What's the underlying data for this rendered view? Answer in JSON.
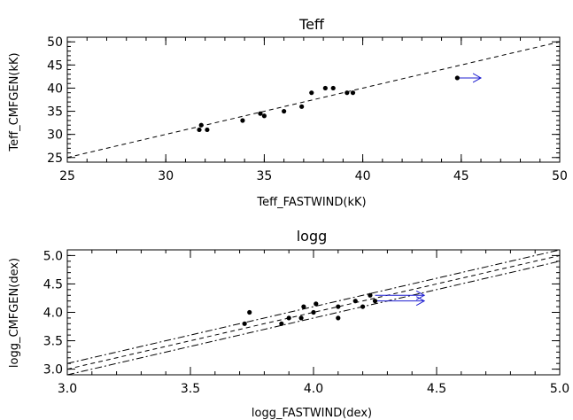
{
  "chart_data": [
    {
      "type": "scatter",
      "title": "Teff",
      "xlabel": "Teff_FASTWIND(kK)",
      "ylabel": "Teff_CMFGEN(kK)",
      "xlim": [
        25,
        50
      ],
      "ylim": [
        24,
        51
      ],
      "xticks": [
        25,
        30,
        35,
        40,
        45,
        50
      ],
      "yticks": [
        25,
        30,
        35,
        40,
        45,
        50
      ],
      "xtick_labels": [
        "25",
        "30",
        "35",
        "40",
        "45",
        "50"
      ],
      "ytick_labels": [
        "25",
        "30",
        "35",
        "40",
        "45",
        "50"
      ],
      "grid": false,
      "points": [
        {
          "x": 31.7,
          "y": 31.0
        },
        {
          "x": 31.8,
          "y": 32.0
        },
        {
          "x": 32.1,
          "y": 31.0
        },
        {
          "x": 33.9,
          "y": 33.0
        },
        {
          "x": 34.8,
          "y": 34.5
        },
        {
          "x": 35.0,
          "y": 34.0
        },
        {
          "x": 36.0,
          "y": 35.0
        },
        {
          "x": 36.9,
          "y": 36.0
        },
        {
          "x": 37.4,
          "y": 39.0
        },
        {
          "x": 38.1,
          "y": 40.0
        },
        {
          "x": 38.5,
          "y": 40.0
        },
        {
          "x": 39.2,
          "y": 39.0
        },
        {
          "x": 39.5,
          "y": 39.0
        },
        {
          "x": 44.8,
          "y": 42.2
        }
      ],
      "arrows": [
        {
          "x_from": 44.8,
          "x_to": 46.0,
          "y": 42.2,
          "color": "#1f1fd0"
        }
      ],
      "reference_lines": [
        {
          "style": "dashed",
          "slope": 1,
          "offset": 0
        }
      ]
    },
    {
      "type": "scatter",
      "title": "logg",
      "xlabel": "logg_FASTWIND(dex)",
      "ylabel": "logg_CMFGEN(dex)",
      "xlim": [
        3.0,
        5.0
      ],
      "ylim": [
        2.9,
        5.1
      ],
      "xticks": [
        3.0,
        3.5,
        4.0,
        4.5,
        5.0
      ],
      "yticks": [
        3.0,
        3.5,
        4.0,
        4.5,
        5.0
      ],
      "xtick_labels": [
        "3.0",
        "3.5",
        "4.0",
        "4.5",
        "5.0"
      ],
      "ytick_labels": [
        "3.0",
        "3.5",
        "4.0",
        "4.5",
        "5.0"
      ],
      "grid": false,
      "points": [
        {
          "x": 3.72,
          "y": 3.8
        },
        {
          "x": 3.74,
          "y": 4.0
        },
        {
          "x": 3.87,
          "y": 3.8
        },
        {
          "x": 3.9,
          "y": 3.9
        },
        {
          "x": 3.95,
          "y": 3.9
        },
        {
          "x": 3.96,
          "y": 4.1
        },
        {
          "x": 4.0,
          "y": 4.0
        },
        {
          "x": 4.01,
          "y": 4.15
        },
        {
          "x": 4.1,
          "y": 4.1
        },
        {
          "x": 4.1,
          "y": 3.9
        },
        {
          "x": 4.17,
          "y": 4.2
        },
        {
          "x": 4.2,
          "y": 4.1
        },
        {
          "x": 4.23,
          "y": 4.3
        },
        {
          "x": 4.25,
          "y": 4.2
        }
      ],
      "arrows": [
        {
          "x_from": 4.25,
          "x_to": 4.45,
          "y": 4.3,
          "color": "#1f1fd0"
        },
        {
          "x_from": 4.25,
          "x_to": 4.45,
          "y": 4.2,
          "color": "#1f1fd0"
        }
      ],
      "reference_lines": [
        {
          "style": "dashed",
          "slope": 1,
          "offset": 0
        },
        {
          "style": "dash-dot",
          "slope": 1,
          "offset": 0.1
        },
        {
          "style": "dash-dot",
          "slope": 1,
          "offset": -0.1
        }
      ]
    }
  ]
}
